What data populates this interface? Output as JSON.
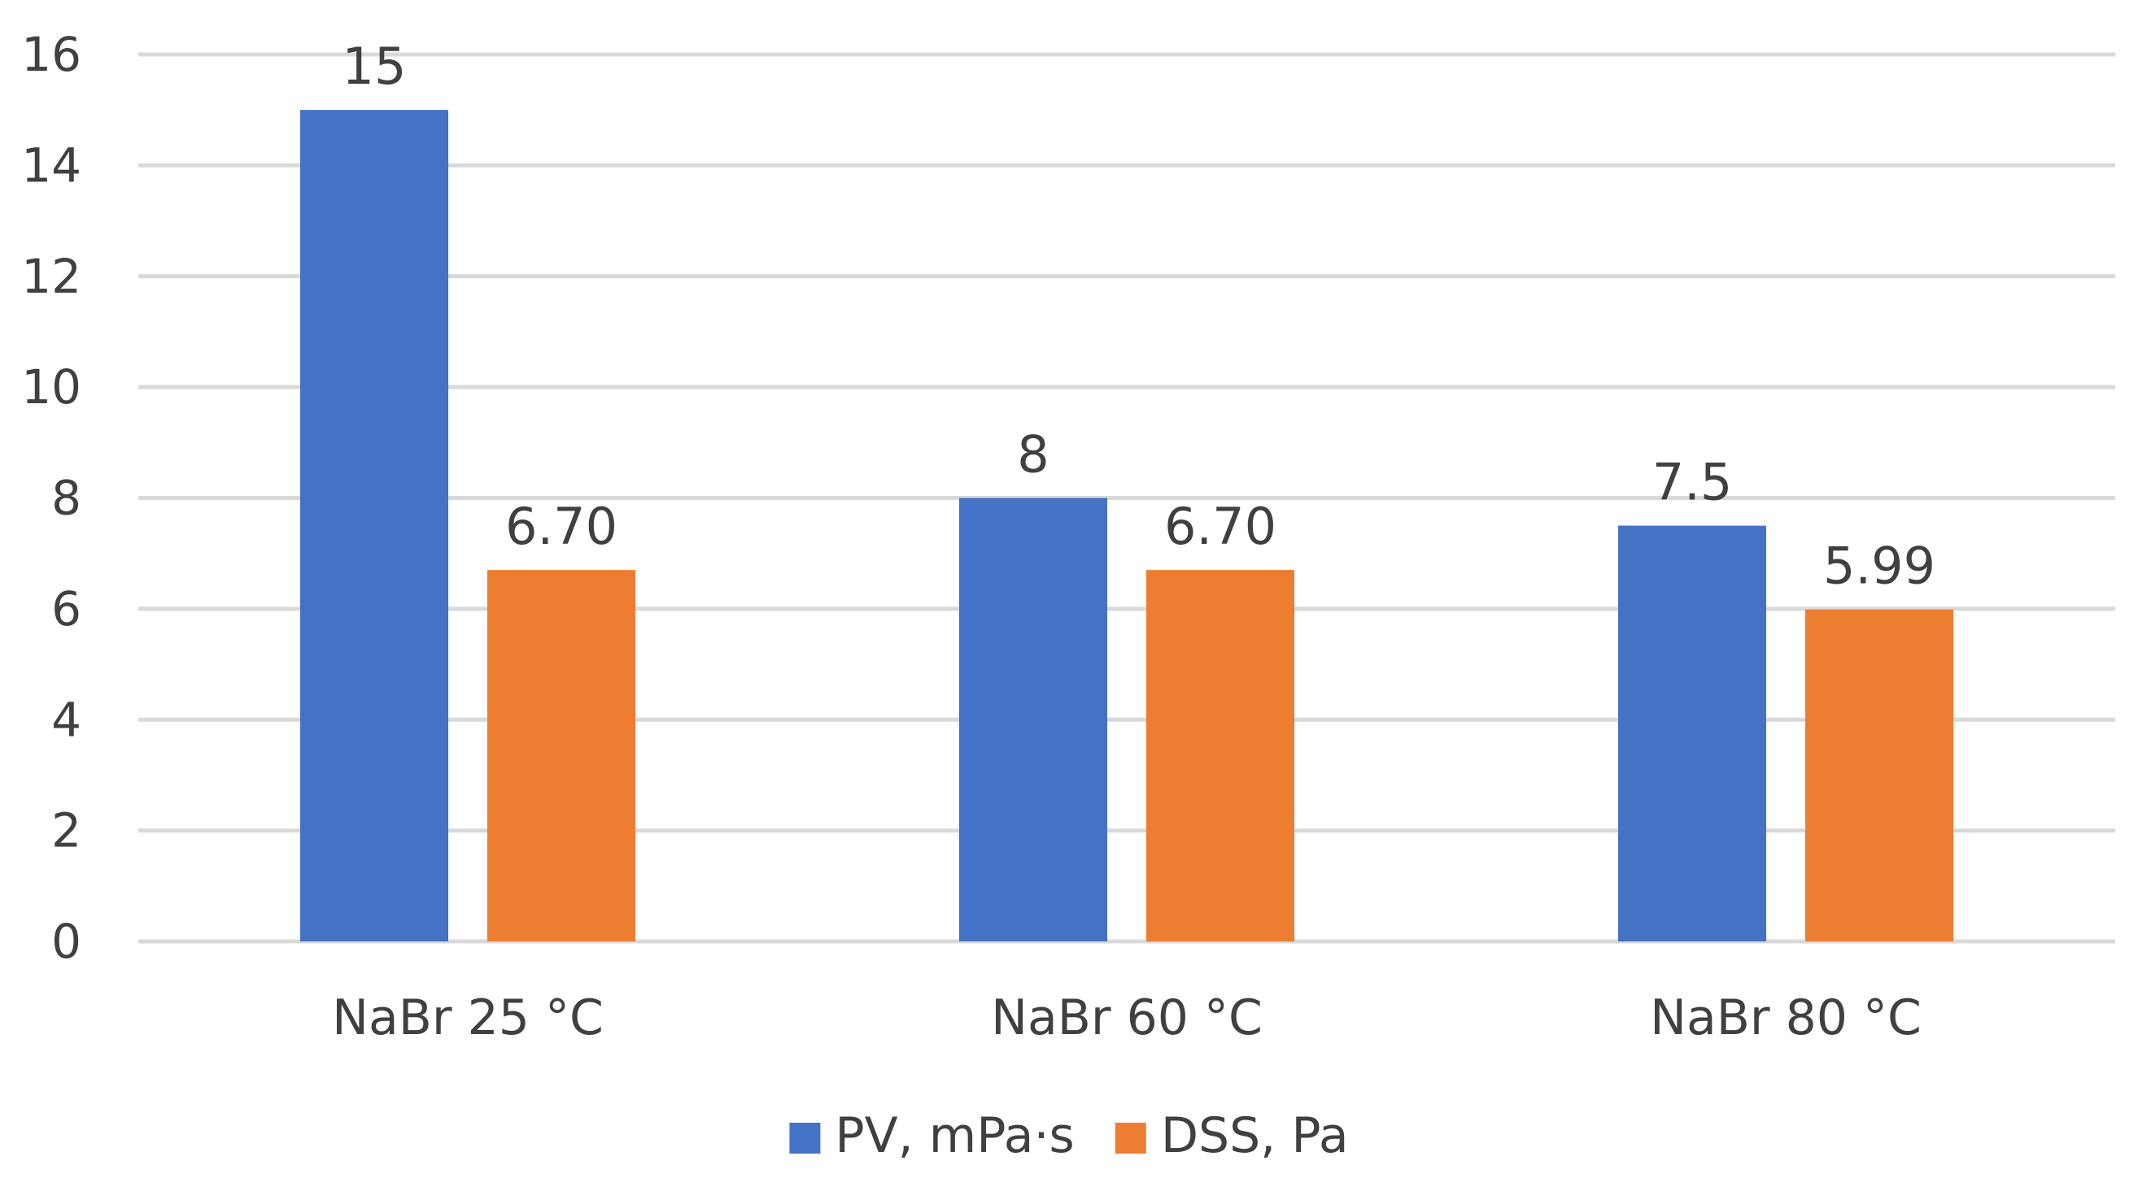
{
  "chart_data": {
    "type": "bar",
    "title": "",
    "xlabel": "",
    "ylabel": "",
    "categories": [
      "NaBr 25 °C",
      "NaBr 60 °C",
      "NaBr 80 °C"
    ],
    "series": [
      {
        "name": "PV, mPa·s",
        "color": "#4472c4",
        "values": [
          15,
          8,
          7.5
        ],
        "labels": [
          "15",
          "8",
          "7.5"
        ]
      },
      {
        "name": "DSS, Pa",
        "color": "#ed7d31",
        "values": [
          6.7,
          6.7,
          5.99
        ],
        "labels": [
          "6.70",
          "6.70",
          "5.99"
        ]
      }
    ],
    "ylim": [
      0,
      16
    ],
    "yticks": [
      0,
      2,
      4,
      6,
      8,
      10,
      12,
      14,
      16
    ],
    "grid": true,
    "legend_position": "bottom-center"
  }
}
